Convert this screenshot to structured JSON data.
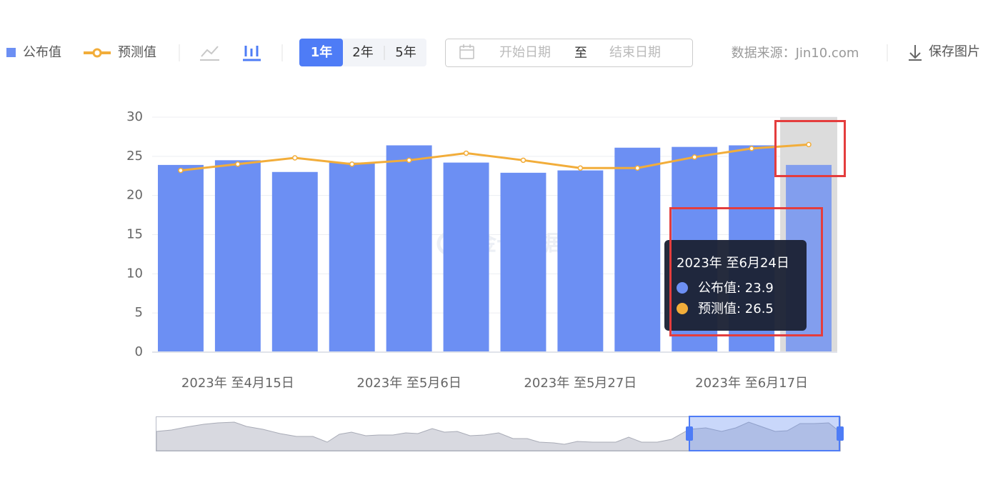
{
  "toolbar": {
    "ranges": [
      "1年",
      "2年",
      "5年"
    ],
    "date_start": "开始日期",
    "date_sep": "至",
    "date_end": "结束日期",
    "source": "数据来源：Jin10.com",
    "save": "保存图片"
  },
  "chart_data": {
    "type": "bar",
    "categories": [
      null,
      "2023年 至4月15日",
      null,
      null,
      "2023年 至5月6日",
      null,
      null,
      "2023年 至5月27日",
      null,
      null,
      "2023年 至6月17日",
      null
    ],
    "series": [
      {
        "name": "公布值",
        "type": "bar",
        "color": "#6c8ff3",
        "values": [
          23.9,
          24.5,
          23.0,
          24.2,
          26.4,
          24.2,
          22.9,
          23.2,
          26.1,
          26.2,
          26.4,
          23.9
        ]
      },
      {
        "name": "预测值",
        "type": "line",
        "color": "#f2ad3a",
        "values": [
          23.2,
          24.0,
          24.8,
          24.0,
          24.5,
          25.4,
          24.5,
          23.5,
          23.5,
          24.9,
          26.0,
          26.5
        ]
      }
    ],
    "ylim": [
      0,
      30
    ],
    "yticks": [
      0,
      5,
      10,
      15,
      20,
      25,
      30
    ],
    "grid": true,
    "watermark": "金十数据",
    "tooltip": {
      "title": "2023年 至6月24日",
      "items": [
        "公布值: 23.9",
        "预测值: 26.5"
      ]
    }
  }
}
